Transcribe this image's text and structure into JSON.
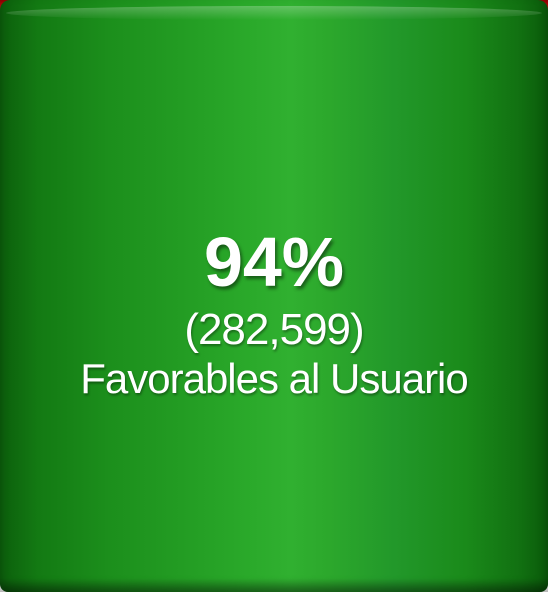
{
  "chart_data": {
    "type": "bar",
    "categories": [
      "Favorables al Usuario"
    ],
    "values": [
      282599
    ],
    "percent_label": "94%",
    "count_label": "(282,599)",
    "caption": "Favorables al Usuario",
    "colors": {
      "fill": "#1c8f1c",
      "highlight": "#30b030",
      "edge": "#0a5a0a",
      "top_band": "#c21010",
      "text": "#ffffff"
    }
  }
}
